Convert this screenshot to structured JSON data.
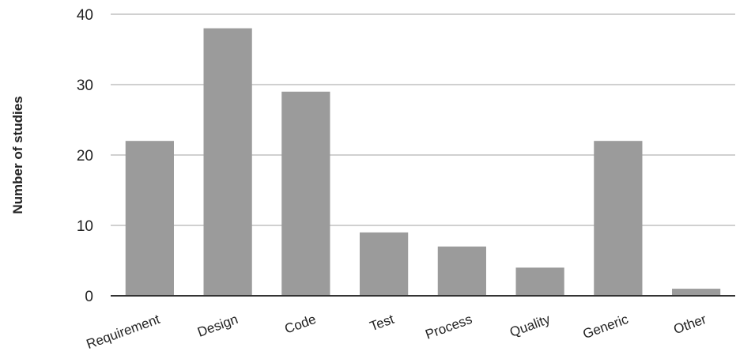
{
  "chart_data": {
    "type": "bar",
    "title": "",
    "xlabel": "",
    "ylabel": "Number of studies",
    "categories": [
      "Requirement",
      "Design",
      "Code",
      "Test",
      "Process",
      "Quality",
      "Generic",
      "Other"
    ],
    "values": [
      22,
      38,
      29,
      9,
      7,
      4,
      22,
      1
    ],
    "ylim": [
      0,
      40
    ],
    "yticks": [
      0,
      10,
      20,
      30,
      40
    ],
    "grid": true,
    "legend": "none",
    "bar_color": "#9b9b9b",
    "grid_color": "#d0d0d0",
    "axis_color": "#333333",
    "text_color": "#222222"
  }
}
